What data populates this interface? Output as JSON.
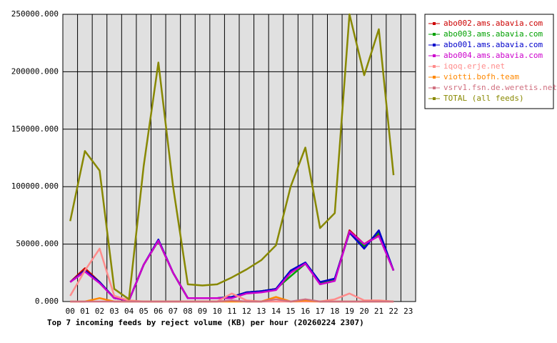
{
  "chart_data": {
    "type": "line",
    "xlabel": "Top 7 incoming feeds by reject volume (KB) per hour (20260224 2307)",
    "categories": [
      "00",
      "01",
      "02",
      "03",
      "04",
      "05",
      "06",
      "07",
      "08",
      "09",
      "10",
      "11",
      "12",
      "13",
      "14",
      "15",
      "16",
      "17",
      "18",
      "19",
      "20",
      "21",
      "22",
      "23"
    ],
    "series": [
      {
        "name": "abo002.ams.abavia.com",
        "color": "#cc0000",
        "values": [
          17000,
          29000,
          17000,
          3000,
          1000,
          32000,
          53000,
          25000,
          3000,
          3000,
          3000,
          4000,
          8000,
          9000,
          11000,
          26000,
          33000,
          16000,
          19000,
          62000,
          50000,
          58000,
          27000,
          null
        ]
      },
      {
        "name": "abo003.ams.abavia.com",
        "color": "#00a000",
        "values": [
          17000,
          27000,
          17000,
          3000,
          1000,
          32000,
          53000,
          25000,
          3000,
          3000,
          3000,
          4000,
          8000,
          9000,
          11000,
          22000,
          33000,
          16000,
          19000,
          61000,
          48000,
          60000,
          27000,
          null
        ]
      },
      {
        "name": "abo001.ams.abavia.com",
        "color": "#0000cc",
        "values": [
          17000,
          27000,
          17000,
          3000,
          1000,
          32000,
          54000,
          25000,
          3000,
          3000,
          3000,
          4000,
          8000,
          9000,
          11000,
          27000,
          34000,
          17000,
          20000,
          60000,
          46000,
          62000,
          27000,
          null
        ]
      },
      {
        "name": "abo004.ams.abavia.com",
        "color": "#cc00cc",
        "values": [
          17000,
          26000,
          16000,
          3000,
          1000,
          32000,
          53000,
          25000,
          3000,
          3000,
          3000,
          3000,
          7000,
          8000,
          10000,
          25000,
          33000,
          15000,
          18000,
          61000,
          50000,
          57000,
          27000,
          null
        ]
      },
      {
        "name": "iqoq.erje.net",
        "color": "#ff8c8c",
        "values": [
          5000,
          27000,
          46000,
          5000,
          1000,
          0,
          0,
          0,
          0,
          0,
          0,
          7000,
          1000,
          0,
          0,
          0,
          0,
          0,
          2000,
          7000,
          1000,
          1000,
          0,
          null
        ]
      },
      {
        "name": "viotti.bofh.team",
        "color": "#ff8800",
        "values": [
          0,
          0,
          3000,
          0,
          0,
          0,
          0,
          0,
          0,
          0,
          0,
          0,
          0,
          0,
          4000,
          0,
          1000,
          0,
          0,
          0,
          0,
          0,
          0,
          null
        ]
      },
      {
        "name": "vsrv1.fsn.de.weretis.net",
        "color": "#d07080",
        "values": [
          0,
          0,
          0,
          0,
          0,
          0,
          0,
          0,
          0,
          0,
          0,
          1000,
          0,
          0,
          2000,
          0,
          2000,
          0,
          0,
          0,
          0,
          0,
          0,
          null
        ]
      },
      {
        "name": "TOTAL (all feeds)",
        "color": "#888800",
        "values": [
          70000,
          131000,
          114000,
          11000,
          2000,
          118000,
          208000,
          100000,
          15000,
          14000,
          15000,
          21000,
          28000,
          36000,
          49000,
          100000,
          134000,
          64000,
          77000,
          250000,
          197000,
          237000,
          110000,
          null
        ]
      }
    ],
    "ylim": [
      0,
      250000
    ],
    "yticks": [
      {
        "value": 0,
        "label": "0.000"
      },
      {
        "value": 50000,
        "label": "50000.000"
      },
      {
        "value": 100000,
        "label": "100000.000"
      },
      {
        "value": 150000,
        "label": "150000.000"
      },
      {
        "value": 200000,
        "label": "200000.000"
      },
      {
        "value": 250000,
        "label": "250000.000"
      }
    ],
    "grid": true,
    "legend": "right"
  }
}
